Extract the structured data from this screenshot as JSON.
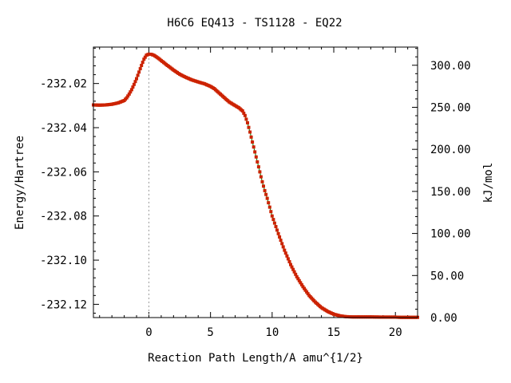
{
  "chart_data": {
    "type": "scatter",
    "title": "H6C6   EQ413 - TS1128 - EQ22",
    "xlabel": "Reaction Path Length/A amu^{1/2}",
    "ylabel": "Energy/Hartree",
    "y2label": "kJ/mol",
    "xlim": [
      -4.5,
      21.8
    ],
    "ylim": [
      -232.126,
      -232.0035
    ],
    "y2lim": [
      0.0,
      321.6
    ],
    "x_ticks": [
      0,
      5,
      10,
      15,
      20
    ],
    "x_tick_labels": [
      "0",
      "5",
      "10",
      "15",
      "20"
    ],
    "y_ticks": [
      -232.02,
      -232.04,
      -232.06,
      -232.08,
      -232.1,
      -232.12
    ],
    "y_tick_labels": [
      "-232.02",
      "-232.04",
      "-232.06",
      "-232.08",
      "-232.10",
      "-232.12"
    ],
    "y2_ticks": [
      0,
      50,
      100,
      150,
      200,
      250,
      300
    ],
    "y2_tick_labels": [
      "0.00",
      "50.00",
      "100.00",
      "150.00",
      "200.00",
      "250.00",
      "300.00"
    ],
    "ts_marker_x": 0,
    "grid": false,
    "colors": {
      "line": "#008000",
      "points": "#cc2200",
      "marker_line": "#999999"
    },
    "series": [
      {
        "x": [
          -4.5,
          -4.0,
          -3.5,
          -3.0,
          -2.5,
          -2.0,
          -1.8,
          -1.6,
          -1.4,
          -1.2,
          -1.0,
          -0.8,
          -0.6,
          -0.4,
          -0.2,
          0.0,
          0.2,
          0.4,
          0.6,
          0.8,
          1.0,
          1.5,
          2.0,
          2.5,
          3.0,
          3.5,
          4.0,
          4.5,
          5.0,
          5.3,
          5.6,
          6.0,
          6.5,
          7.0,
          7.3,
          7.6,
          7.8,
          8.0,
          8.2,
          8.4,
          8.6,
          8.8,
          9.0,
          9.2,
          9.4,
          9.6,
          9.8,
          10.0,
          10.5,
          11.0,
          11.5,
          12.0,
          12.5,
          13.0,
          13.5,
          14.0,
          14.5,
          15.0,
          15.5,
          16.0,
          16.5,
          17.0,
          18.0,
          19.0,
          20.0,
          20.5,
          21.0,
          21.5,
          21.8
        ],
        "y": [
          -232.0297,
          -232.0298,
          -232.0297,
          -232.0294,
          -232.0288,
          -232.0277,
          -232.0265,
          -232.0248,
          -232.0228,
          -232.0204,
          -232.0178,
          -232.0148,
          -232.0118,
          -232.009,
          -232.0072,
          -232.0067,
          -232.0068,
          -232.0072,
          -232.0079,
          -232.0087,
          -232.0096,
          -232.0118,
          -232.0139,
          -232.0158,
          -232.0172,
          -232.0184,
          -232.0193,
          -232.0201,
          -232.0213,
          -232.0223,
          -232.0238,
          -232.0258,
          -232.0283,
          -232.03,
          -232.031,
          -232.0324,
          -232.0345,
          -232.0378,
          -232.042,
          -232.0465,
          -232.051,
          -232.0555,
          -232.06,
          -232.0645,
          -232.0685,
          -232.072,
          -232.076,
          -232.08,
          -232.088,
          -232.0955,
          -232.102,
          -232.1075,
          -232.112,
          -232.116,
          -232.119,
          -232.1215,
          -232.1232,
          -232.1245,
          -232.1252,
          -232.1256,
          -232.1257,
          -232.1257,
          -232.1257,
          -232.1258,
          -232.1258,
          -232.1259,
          -232.1259,
          -232.1259,
          -232.1259
        ]
      }
    ]
  }
}
